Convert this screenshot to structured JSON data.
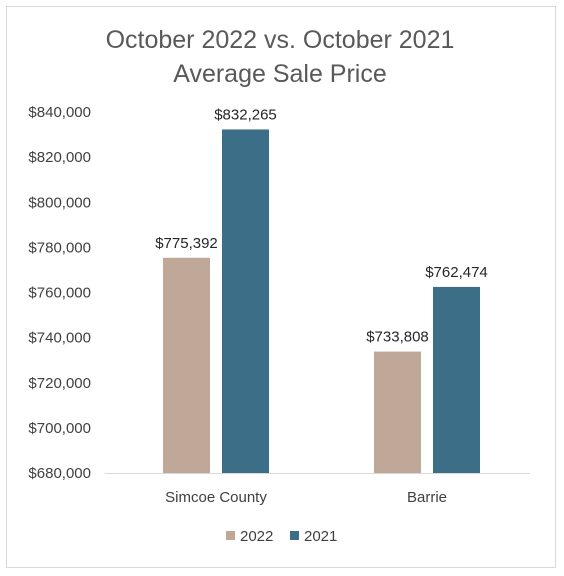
{
  "chart_data": {
    "type": "bar",
    "title_lines": [
      "October 2022 vs. October 2021",
      "Average Sale Price"
    ],
    "categories": [
      "Simcoe County",
      "Barrie"
    ],
    "series": [
      {
        "name": "2022",
        "values": [
          775392,
          733808
        ],
        "labels": [
          "$775,392",
          "$733,808"
        ],
        "color": "#c0a898"
      },
      {
        "name": "2021",
        "values": [
          832265,
          762474
        ],
        "labels": [
          "$832,265",
          "$762,474"
        ],
        "color": "#3d6e87"
      }
    ],
    "ylim": [
      680000,
      840000
    ],
    "y_ticks": [
      680000,
      700000,
      720000,
      740000,
      760000,
      780000,
      800000,
      820000,
      840000
    ],
    "y_tick_labels": [
      "$680,000",
      "$700,000",
      "$720,000",
      "$740,000",
      "$760,000",
      "$780,000",
      "$800,000",
      "$820,000",
      "$840,000"
    ],
    "grid": false,
    "legend_position": "bottom"
  }
}
